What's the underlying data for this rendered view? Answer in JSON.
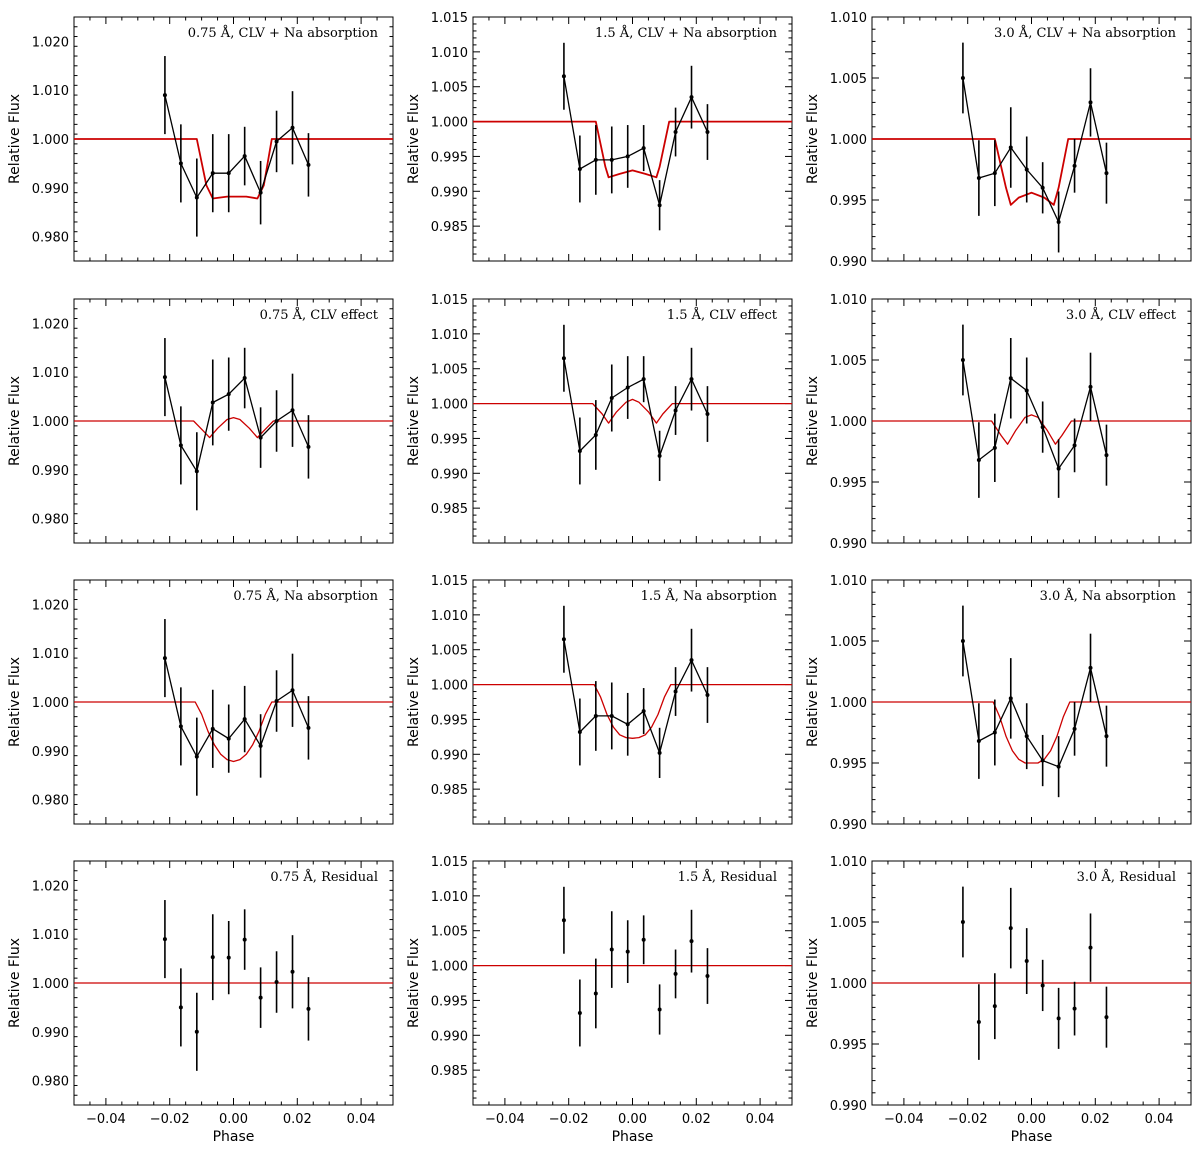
{
  "chart_data": [
    {
      "type": "line",
      "title": "0.75 Å, CLV + Na absorption",
      "ylabel": "Relative Flux",
      "xlabel": "",
      "xlim": [
        -0.05,
        0.05
      ],
      "ylim": [
        0.975,
        1.025
      ],
      "yticks": [
        "0.980",
        "0.990",
        "1.000",
        "1.010",
        "1.020"
      ],
      "xticks": [],
      "series": [
        {
          "role": "data",
          "x": [
            -0.0215,
            -0.0165,
            -0.0115,
            -0.0065,
            -0.0015,
            0.0035,
            0.0085,
            0.0135,
            0.0185,
            0.0235
          ],
          "y": [
            1.009,
            0.995,
            0.988,
            0.993,
            0.993,
            0.9965,
            0.989,
            0.9995,
            1.0023,
            0.9947
          ],
          "err": [
            0.008,
            0.008,
            0.008,
            0.008,
            0.008,
            0.006,
            0.0065,
            0.0063,
            0.0075,
            0.0065
          ]
        },
        {
          "role": "model",
          "x": [
            -0.05,
            -0.0115,
            -0.0085,
            -0.0065,
            -0.002,
            0.004,
            0.0075,
            0.0095,
            0.012,
            0.05
          ],
          "y": [
            1.0,
            1.0,
            0.9905,
            0.9878,
            0.9882,
            0.9882,
            0.9878,
            0.9905,
            1.0,
            1.0
          ]
        }
      ]
    },
    {
      "type": "line",
      "title": "1.5 Å, CLV + Na absorption",
      "ylabel": "Relative Flux",
      "xlabel": "",
      "xlim": [
        -0.05,
        0.05
      ],
      "ylim": [
        0.98,
        1.015
      ],
      "yticks": [
        "0.985",
        "0.990",
        "0.995",
        "1.000",
        "1.005",
        "1.010",
        "1.015"
      ],
      "xticks": [],
      "series": [
        {
          "role": "data",
          "x": [
            -0.0215,
            -0.0165,
            -0.0115,
            -0.0065,
            -0.0015,
            0.0035,
            0.0085,
            0.0135,
            0.0185,
            0.0235
          ],
          "y": [
            1.0065,
            0.9932,
            0.9945,
            0.9945,
            0.995,
            0.9962,
            0.988,
            0.9985,
            1.0035,
            0.9985
          ],
          "err": [
            0.0048,
            0.0048,
            0.005,
            0.0048,
            0.0045,
            0.0033,
            0.0036,
            0.0035,
            0.0045,
            0.004
          ]
        },
        {
          "role": "model",
          "x": [
            -0.05,
            -0.0115,
            -0.0085,
            -0.0075,
            -0.004,
            0.0,
            0.004,
            0.0075,
            0.0085,
            0.0115,
            0.05
          ],
          "y": [
            1.0,
            1.0,
            0.9935,
            0.992,
            0.9925,
            0.993,
            0.9925,
            0.992,
            0.9935,
            1.0,
            1.0
          ]
        }
      ]
    },
    {
      "type": "line",
      "title": "3.0 Å, CLV + Na absorption",
      "ylabel": "Relative Flux",
      "xlabel": "",
      "xlim": [
        -0.05,
        0.05
      ],
      "ylim": [
        0.99,
        1.01
      ],
      "yticks": [
        "0.990",
        "0.995",
        "1.000",
        "1.005",
        "1.010"
      ],
      "xticks": [],
      "series": [
        {
          "role": "data",
          "x": [
            -0.0215,
            -0.0165,
            -0.0115,
            -0.0065,
            -0.0015,
            0.0035,
            0.0085,
            0.0135,
            0.0185,
            0.0235
          ],
          "y": [
            1.005,
            0.9968,
            0.9972,
            0.9993,
            0.9975,
            0.996,
            0.9932,
            0.9978,
            1.003,
            0.9972
          ],
          "err": [
            0.0029,
            0.0031,
            0.0027,
            0.0033,
            0.0027,
            0.0021,
            0.0025,
            0.0022,
            0.0028,
            0.0025
          ]
        },
        {
          "role": "model",
          "x": [
            -0.05,
            -0.0115,
            -0.008,
            -0.0065,
            -0.004,
            0.0,
            0.004,
            0.007,
            0.0085,
            0.0115,
            0.05
          ],
          "y": [
            1.0,
            1.0,
            0.996,
            0.9946,
            0.9952,
            0.9956,
            0.9952,
            0.9946,
            0.996,
            1.0,
            1.0
          ]
        }
      ]
    },
    {
      "type": "line",
      "title": "0.75 Å, CLV effect",
      "ylabel": "Relative Flux",
      "xlabel": "",
      "xlim": [
        -0.05,
        0.05
      ],
      "ylim": [
        0.975,
        1.025
      ],
      "yticks": [
        "0.980",
        "0.990",
        "1.000",
        "1.010",
        "1.020"
      ],
      "xticks": [],
      "series": [
        {
          "role": "data",
          "x": [
            -0.0215,
            -0.0165,
            -0.0115,
            -0.0065,
            -0.0015,
            0.0035,
            0.0085,
            0.0135,
            0.0185,
            0.0235
          ],
          "y": [
            1.009,
            0.995,
            0.9897,
            1.0038,
            1.0055,
            1.0088,
            0.9966,
            1.0,
            1.0022,
            0.9947
          ],
          "err": [
            0.008,
            0.008,
            0.008,
            0.0088,
            0.0075,
            0.0062,
            0.0062,
            0.0063,
            0.0075,
            0.0065
          ]
        },
        {
          "role": "model",
          "x": [
            -0.05,
            -0.0125,
            -0.0095,
            -0.0075,
            -0.005,
            -0.002,
            0.0,
            0.002,
            0.005,
            0.0075,
            0.0095,
            0.0125,
            0.05
          ],
          "y": [
            1.0,
            1.0,
            0.998,
            0.9966,
            0.9985,
            1.0003,
            1.0007,
            1.0003,
            0.9985,
            0.9966,
            0.998,
            1.0,
            1.0
          ]
        }
      ]
    },
    {
      "type": "line",
      "title": "1.5 Å, CLV effect",
      "ylabel": "Relative Flux",
      "xlabel": "",
      "xlim": [
        -0.05,
        0.05
      ],
      "ylim": [
        0.98,
        1.015
      ],
      "yticks": [
        "0.985",
        "0.990",
        "0.995",
        "1.000",
        "1.005",
        "1.010",
        "1.015"
      ],
      "xticks": [],
      "series": [
        {
          "role": "data",
          "x": [
            -0.0215,
            -0.0165,
            -0.0115,
            -0.0065,
            -0.0015,
            0.0035,
            0.0085,
            0.0135,
            0.0185,
            0.0235
          ],
          "y": [
            1.0065,
            0.9932,
            0.9955,
            1.0008,
            1.0023,
            1.0035,
            0.9925,
            0.999,
            1.0035,
            0.9985
          ],
          "err": [
            0.0048,
            0.0048,
            0.005,
            0.0048,
            0.0045,
            0.0033,
            0.0036,
            0.0035,
            0.0045,
            0.004
          ]
        },
        {
          "role": "model",
          "x": [
            -0.05,
            -0.0125,
            -0.0095,
            -0.0075,
            -0.005,
            -0.002,
            0.0,
            0.002,
            0.005,
            0.0075,
            0.0095,
            0.0125,
            0.05
          ],
          "y": [
            1.0,
            1.0,
            0.9985,
            0.9972,
            0.9988,
            1.0002,
            1.0006,
            1.0002,
            0.9988,
            0.9972,
            0.9985,
            1.0,
            1.0
          ]
        }
      ]
    },
    {
      "type": "line",
      "title": "3.0 Å, CLV effect",
      "ylabel": "Relative Flux",
      "xlabel": "",
      "xlim": [
        -0.05,
        0.05
      ],
      "ylim": [
        0.99,
        1.01
      ],
      "yticks": [
        "0.990",
        "0.995",
        "1.000",
        "1.005",
        "1.010"
      ],
      "xticks": [],
      "series": [
        {
          "role": "data",
          "x": [
            -0.0215,
            -0.0165,
            -0.0115,
            -0.0065,
            -0.0015,
            0.0035,
            0.0085,
            0.0135,
            0.0185,
            0.0235
          ],
          "y": [
            1.005,
            0.9968,
            0.9978,
            1.0035,
            1.0025,
            0.9995,
            0.9961,
            0.998,
            1.0028,
            0.9972
          ],
          "err": [
            0.0029,
            0.0031,
            0.0028,
            0.0033,
            0.0027,
            0.0021,
            0.0024,
            0.0022,
            0.0028,
            0.0025
          ]
        },
        {
          "role": "model",
          "x": [
            -0.05,
            -0.0125,
            -0.0095,
            -0.0075,
            -0.005,
            -0.002,
            0.0,
            0.002,
            0.005,
            0.0075,
            0.0095,
            0.0125,
            0.05
          ],
          "y": [
            1.0,
            1.0,
            0.9988,
            0.9981,
            0.9992,
            1.0003,
            1.0005,
            1.0003,
            0.9992,
            0.9981,
            0.9988,
            1.0,
            1.0
          ]
        }
      ]
    },
    {
      "type": "line",
      "title": "0.75 Å, Na absorption",
      "ylabel": "Relative Flux",
      "xlabel": "",
      "xlim": [
        -0.05,
        0.05
      ],
      "ylim": [
        0.975,
        1.025
      ],
      "yticks": [
        "0.980",
        "0.990",
        "1.000",
        "1.010",
        "1.020"
      ],
      "xticks": [],
      "series": [
        {
          "role": "data",
          "x": [
            -0.0215,
            -0.0165,
            -0.0115,
            -0.0065,
            -0.0015,
            0.0035,
            0.0085,
            0.0135,
            0.0185,
            0.0235
          ],
          "y": [
            1.009,
            0.995,
            0.9888,
            0.9945,
            0.9925,
            0.9965,
            0.991,
            1.0002,
            1.0024,
            0.9947
          ],
          "err": [
            0.008,
            0.008,
            0.008,
            0.008,
            0.007,
            0.0068,
            0.0065,
            0.0063,
            0.0075,
            0.0065
          ]
        },
        {
          "role": "model",
          "x": [
            -0.05,
            -0.012,
            -0.01,
            -0.008,
            -0.006,
            -0.004,
            -0.002,
            0.0,
            0.002,
            0.004,
            0.006,
            0.008,
            0.01,
            0.012,
            0.05
          ],
          "y": [
            1.0,
            1.0,
            0.9975,
            0.994,
            0.9912,
            0.9893,
            0.9882,
            0.9878,
            0.9882,
            0.9893,
            0.9912,
            0.994,
            0.9975,
            1.0,
            1.0
          ]
        }
      ]
    },
    {
      "type": "line",
      "title": "1.5 Å, Na absorption",
      "ylabel": "Relative Flux",
      "xlabel": "",
      "xlim": [
        -0.05,
        0.05
      ],
      "ylim": [
        0.98,
        1.015
      ],
      "yticks": [
        "0.985",
        "0.990",
        "0.995",
        "1.000",
        "1.005",
        "1.010",
        "1.015"
      ],
      "xticks": [],
      "series": [
        {
          "role": "data",
          "x": [
            -0.0215,
            -0.0165,
            -0.0115,
            -0.0065,
            -0.0015,
            0.0035,
            0.0085,
            0.0135,
            0.0185,
            0.0235
          ],
          "y": [
            1.0065,
            0.9932,
            0.9955,
            0.9955,
            0.9943,
            0.9962,
            0.9902,
            0.999,
            1.0035,
            0.9985
          ],
          "err": [
            0.0048,
            0.0048,
            0.005,
            0.0048,
            0.0045,
            0.0033,
            0.0036,
            0.0035,
            0.0045,
            0.004
          ]
        },
        {
          "role": "model",
          "x": [
            -0.05,
            -0.012,
            -0.01,
            -0.008,
            -0.006,
            -0.004,
            -0.002,
            0.0,
            0.002,
            0.004,
            0.006,
            0.008,
            0.01,
            0.012,
            0.05
          ],
          "y": [
            1.0,
            1.0,
            0.9982,
            0.9957,
            0.9939,
            0.9928,
            0.9924,
            0.9923,
            0.9924,
            0.9928,
            0.9939,
            0.9957,
            0.9982,
            1.0,
            1.0
          ]
        }
      ]
    },
    {
      "type": "line",
      "title": "3.0 Å, Na absorption",
      "ylabel": "Relative Flux",
      "xlabel": "",
      "xlim": [
        -0.05,
        0.05
      ],
      "ylim": [
        0.99,
        1.01
      ],
      "yticks": [
        "0.990",
        "0.995",
        "1.000",
        "1.005",
        "1.010"
      ],
      "xticks": [],
      "series": [
        {
          "role": "data",
          "x": [
            -0.0215,
            -0.0165,
            -0.0115,
            -0.0065,
            -0.0015,
            0.0035,
            0.0085,
            0.0135,
            0.0185,
            0.0235
          ],
          "y": [
            1.005,
            0.9968,
            0.9975,
            1.0003,
            0.9972,
            0.9952,
            0.9947,
            0.9978,
            1.0028,
            0.9972
          ],
          "err": [
            0.0029,
            0.0031,
            0.0027,
            0.0033,
            0.0027,
            0.0021,
            0.0025,
            0.0022,
            0.0028,
            0.0025
          ]
        },
        {
          "role": "model",
          "x": [
            -0.05,
            -0.012,
            -0.01,
            -0.008,
            -0.006,
            -0.004,
            -0.002,
            0.0,
            0.002,
            0.004,
            0.006,
            0.008,
            0.01,
            0.012,
            0.05
          ],
          "y": [
            1.0,
            1.0,
            0.9988,
            0.9972,
            0.996,
            0.9953,
            0.995,
            0.995,
            0.995,
            0.9953,
            0.996,
            0.9972,
            0.9988,
            1.0,
            1.0
          ]
        }
      ]
    },
    {
      "type": "scatter",
      "title": "0.75 Å, Residual",
      "ylabel": "Relative Flux",
      "xlabel": "Phase",
      "xlim": [
        -0.05,
        0.05
      ],
      "ylim": [
        0.975,
        1.025
      ],
      "yticks": [
        "0.980",
        "0.990",
        "1.000",
        "1.010",
        "1.020"
      ],
      "xticks": [
        "−0.04",
        "−0.02",
        "0.00",
        "0.02",
        "0.04"
      ],
      "series": [
        {
          "role": "data",
          "x": [
            -0.0215,
            -0.0165,
            -0.0115,
            -0.0065,
            -0.0015,
            0.0035,
            0.0085,
            0.0135,
            0.0185,
            0.0235
          ],
          "y": [
            1.009,
            0.995,
            0.99,
            1.0053,
            1.0052,
            1.0089,
            0.997,
            1.0002,
            1.0023,
            0.9947
          ],
          "err": [
            0.008,
            0.008,
            0.008,
            0.0088,
            0.0075,
            0.0062,
            0.0062,
            0.0063,
            0.0075,
            0.0065
          ]
        },
        {
          "role": "model",
          "x": [
            -0.05,
            0.05
          ],
          "y": [
            1.0,
            1.0
          ]
        }
      ]
    },
    {
      "type": "scatter",
      "title": "1.5 Å, Residual",
      "ylabel": "Relative Flux",
      "xlabel": "Phase",
      "xlim": [
        -0.05,
        0.05
      ],
      "ylim": [
        0.98,
        1.015
      ],
      "yticks": [
        "0.985",
        "0.990",
        "0.995",
        "1.000",
        "1.005",
        "1.010",
        "1.015"
      ],
      "xticks": [
        "−0.04",
        "−0.02",
        "0.00",
        "0.02",
        "0.04"
      ],
      "series": [
        {
          "role": "data",
          "x": [
            -0.0215,
            -0.0165,
            -0.0115,
            -0.0065,
            -0.0015,
            0.0035,
            0.0085,
            0.0135,
            0.0185,
            0.0235
          ],
          "y": [
            1.0065,
            0.9932,
            0.996,
            1.0023,
            1.002,
            1.0037,
            0.9937,
            0.9988,
            1.0035,
            0.9985
          ],
          "err": [
            0.0048,
            0.0048,
            0.005,
            0.0055,
            0.0045,
            0.0035,
            0.0036,
            0.0035,
            0.0045,
            0.004
          ]
        },
        {
          "role": "model",
          "x": [
            -0.05,
            0.05
          ],
          "y": [
            1.0,
            1.0
          ]
        }
      ]
    },
    {
      "type": "scatter",
      "title": "3.0 Å, Residual",
      "ylabel": "Relative Flux",
      "xlabel": "Phase",
      "xlim": [
        -0.05,
        0.05
      ],
      "ylim": [
        0.99,
        1.01
      ],
      "yticks": [
        "0.990",
        "0.995",
        "1.000",
        "1.005",
        "1.010"
      ],
      "xticks": [
        "−0.04",
        "−0.02",
        "0.00",
        "0.02",
        "0.04"
      ],
      "series": [
        {
          "role": "data",
          "x": [
            -0.0215,
            -0.0165,
            -0.0115,
            -0.0065,
            -0.0015,
            0.0035,
            0.0085,
            0.0135,
            0.0185,
            0.0235
          ],
          "y": [
            1.005,
            0.9968,
            0.9981,
            1.0045,
            1.0018,
            0.9998,
            0.9971,
            0.9979,
            1.0029,
            0.9972
          ],
          "err": [
            0.0029,
            0.0031,
            0.0027,
            0.0033,
            0.0027,
            0.0021,
            0.0025,
            0.0022,
            0.0028,
            0.0025
          ]
        },
        {
          "role": "model",
          "x": [
            -0.05,
            0.05
          ],
          "y": [
            1.0,
            1.0
          ]
        }
      ]
    }
  ],
  "colors": {
    "data": "#000000",
    "model": "#cc0000",
    "frame": "#000000"
  }
}
